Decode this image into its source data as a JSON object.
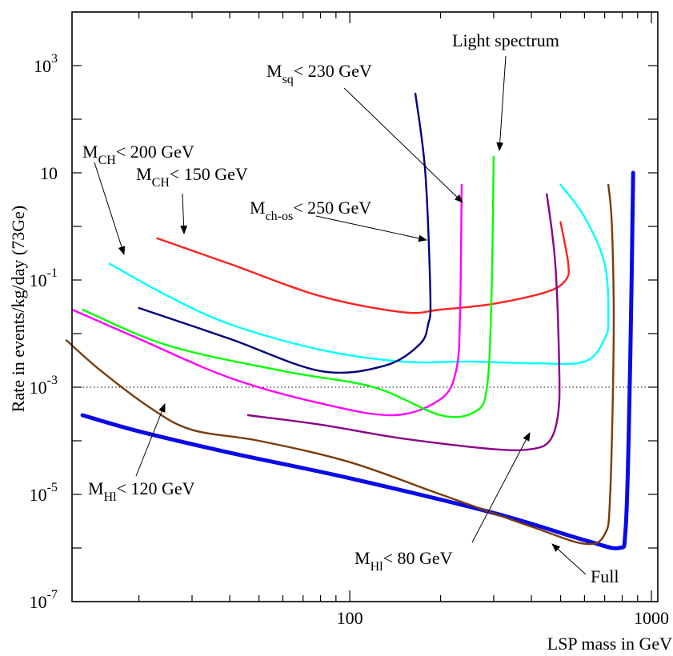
{
  "chart_data": {
    "type": "line",
    "title": "",
    "xlabel": "LSP mass in GeV",
    "ylabel": "Rate in events/kg/day (73Ge)",
    "x_scale": "log",
    "y_scale": "log",
    "xlim": [
      12,
      1050
    ],
    "ylim": [
      1e-07,
      10000
    ],
    "x_ticks": [
      {
        "value": 100,
        "label": "100"
      },
      {
        "value": 1000,
        "label": "1000"
      }
    ],
    "y_ticks": [
      {
        "value": 1e-07,
        "base": "10",
        "exp": "-7"
      },
      {
        "value": 1e-05,
        "base": "10",
        "exp": "-5"
      },
      {
        "value": 0.001,
        "base": "10",
        "exp": "-3"
      },
      {
        "value": 0.1,
        "base": "10",
        "exp": "-1"
      },
      {
        "value": 10,
        "base": "10",
        "exp": ""
      },
      {
        "value": 1000,
        "base": "10",
        "exp": "3"
      }
    ],
    "reference_line": {
      "y": 0.001,
      "style": "dotted"
    },
    "series": [
      {
        "color": "#0a0ae6",
        "bold": true,
        "x": [
          13,
          20,
          40,
          100,
          300,
          600,
          780,
          820,
          840,
          860,
          870
        ],
        "y": [
          0.0003,
          0.00015,
          6e-05,
          2e-05,
          4.5e-06,
          1.4e-06,
          1e-06,
          2e-06,
          0.0001,
          0.1,
          10
        ]
      },
      {
        "color": "#7a3c0a",
        "x": [
          11.5,
          15,
          22,
          30,
          50,
          100,
          200,
          400,
          600,
          700,
          730,
          750,
          740,
          720
        ],
        "y": [
          0.0075,
          0.002,
          0.0004,
          0.00016,
          0.0001,
          4e-05,
          1e-05,
          2.5e-06,
          1.2e-06,
          1.8e-06,
          1e-05,
          0.01,
          1,
          6
        ]
      },
      {
        "color": "#ff2020",
        "x": [
          23,
          40,
          80,
          150,
          200,
          300,
          450,
          520,
          530,
          500
        ],
        "y": [
          0.6,
          0.2,
          0.05,
          0.025,
          0.028,
          0.036,
          0.06,
          0.1,
          0.2,
          1.2
        ]
      },
      {
        "color": "#00ffff",
        "x": [
          16,
          25,
          40,
          80,
          150,
          250,
          400,
          600,
          700,
          720,
          700,
          600,
          500
        ],
        "y": [
          0.2,
          0.05,
          0.015,
          0.005,
          0.003,
          0.003,
          0.0028,
          0.003,
          0.008,
          0.02,
          0.2,
          1.5,
          6
        ]
      },
      {
        "color": "#00007f",
        "x": [
          20,
          40,
          80,
          130,
          170,
          182,
          185,
          178,
          165
        ],
        "y": [
          0.03,
          0.008,
          0.002,
          0.0025,
          0.0062,
          0.015,
          0.05,
          10,
          300
        ]
      },
      {
        "color": "#ff00ff",
        "x": [
          12,
          20,
          40,
          80,
          140,
          200,
          225,
          232,
          235
        ],
        "y": [
          0.028,
          0.008,
          0.0015,
          0.0005,
          0.0003,
          0.0006,
          0.002,
          0.02,
          6
        ]
      },
      {
        "color": "#00ff00",
        "x": [
          13,
          25,
          60,
          120,
          200,
          260,
          285,
          295,
          300
        ],
        "y": [
          0.028,
          0.006,
          0.002,
          0.001,
          0.0003,
          0.00035,
          0.001,
          0.05,
          20
        ]
      },
      {
        "color": "#8b008b",
        "x": [
          46,
          80,
          150,
          300,
          400,
          460,
          490,
          495,
          480,
          450
        ],
        "y": [
          0.0003,
          0.0002,
          0.00011,
          7e-05,
          7e-05,
          0.0001,
          0.0003,
          0.002,
          0.2,
          4
        ]
      }
    ],
    "annotations": [
      {
        "id": "mch200",
        "main": "M",
        "sub": "CH",
        "rest": "< 200 GeV"
      },
      {
        "id": "mch150",
        "main": "M",
        "sub": "CH",
        "rest": "< 150 GeV"
      },
      {
        "id": "msq",
        "main": "M",
        "sub": "sq",
        "rest": "< 230 GeV"
      },
      {
        "id": "light",
        "main": "Light spectrum",
        "sub": "",
        "rest": ""
      },
      {
        "id": "mchos",
        "main": "M",
        "sub": "ch-os",
        "rest": "< 250 GeV"
      },
      {
        "id": "mhl120",
        "main": "M",
        "sub": "Hl",
        "rest": "< 120 GeV"
      },
      {
        "id": "mhl80",
        "main": "M",
        "sub": "Hl",
        "rest": "< 80 GeV"
      },
      {
        "id": "full",
        "main": "Full",
        "sub": "",
        "rest": ""
      }
    ]
  }
}
